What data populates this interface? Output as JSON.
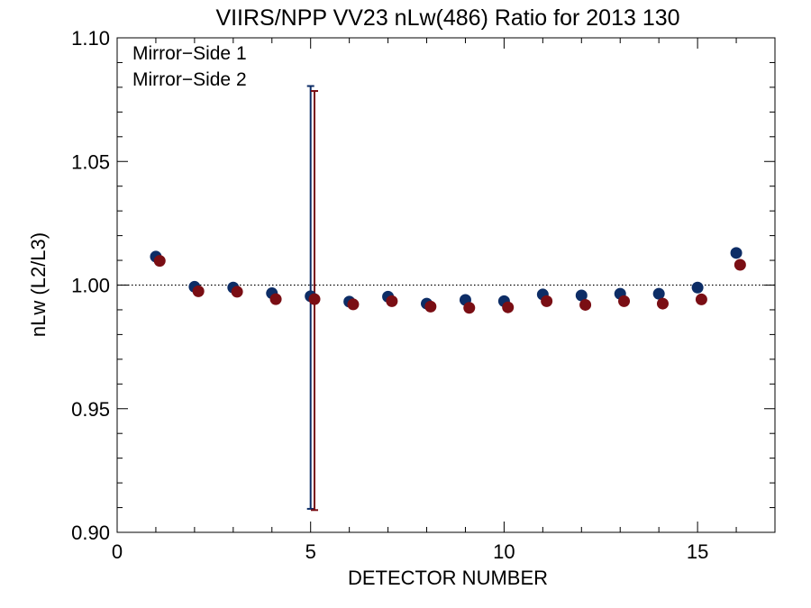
{
  "chart_data": {
    "type": "scatter",
    "title": "VIIRS/NPP VV23 nLw(486) Ratio for 2013 130",
    "xlabel": "DETECTOR NUMBER",
    "ylabel": "nLw (L2/L3)",
    "xlim": [
      0,
      17
    ],
    "ylim": [
      0.9,
      1.1
    ],
    "x_ticks": [
      0,
      5,
      10,
      15
    ],
    "x_tick_labels": [
      "0",
      "5",
      "10",
      "15"
    ],
    "y_ticks": [
      0.9,
      0.95,
      1.0,
      1.05,
      1.1
    ],
    "y_tick_labels": [
      "0.90",
      "0.95",
      "1.00",
      "1.05",
      "1.10"
    ],
    "reference_line": 1.0,
    "legend_position": "top-left",
    "series": [
      {
        "name": "Mirror−Side 1",
        "color": "#0d2d66",
        "x": [
          1,
          2,
          3,
          4,
          5,
          6,
          7,
          8,
          9,
          10,
          11,
          12,
          13,
          14,
          15,
          16
        ],
        "y": [
          1.0115,
          0.9993,
          0.999,
          0.9967,
          0.9955,
          0.9933,
          0.9953,
          0.9925,
          0.994,
          0.9935,
          0.9962,
          0.9958,
          0.9965,
          0.9965,
          0.999,
          1.013
        ],
        "error_bars": [
          {
            "x": 5,
            "low": 0.9095,
            "high": 1.0805
          }
        ]
      },
      {
        "name": "Mirror−Side 2",
        "color": "#7a0e14",
        "x": [
          1.1,
          2.1,
          3.1,
          4.1,
          5.1,
          6.1,
          7.1,
          8.1,
          9.1,
          10.1,
          11.1,
          12.1,
          13.1,
          14.1,
          15.1,
          16.1
        ],
        "y": [
          1.0098,
          0.9975,
          0.9973,
          0.9943,
          0.9943,
          0.9922,
          0.9935,
          0.9913,
          0.9908,
          0.991,
          0.9935,
          0.992,
          0.9935,
          0.9925,
          0.9942,
          1.0082
        ],
        "error_bars": [
          {
            "x": 5.1,
            "low": 0.909,
            "high": 1.0785
          }
        ]
      }
    ]
  }
}
